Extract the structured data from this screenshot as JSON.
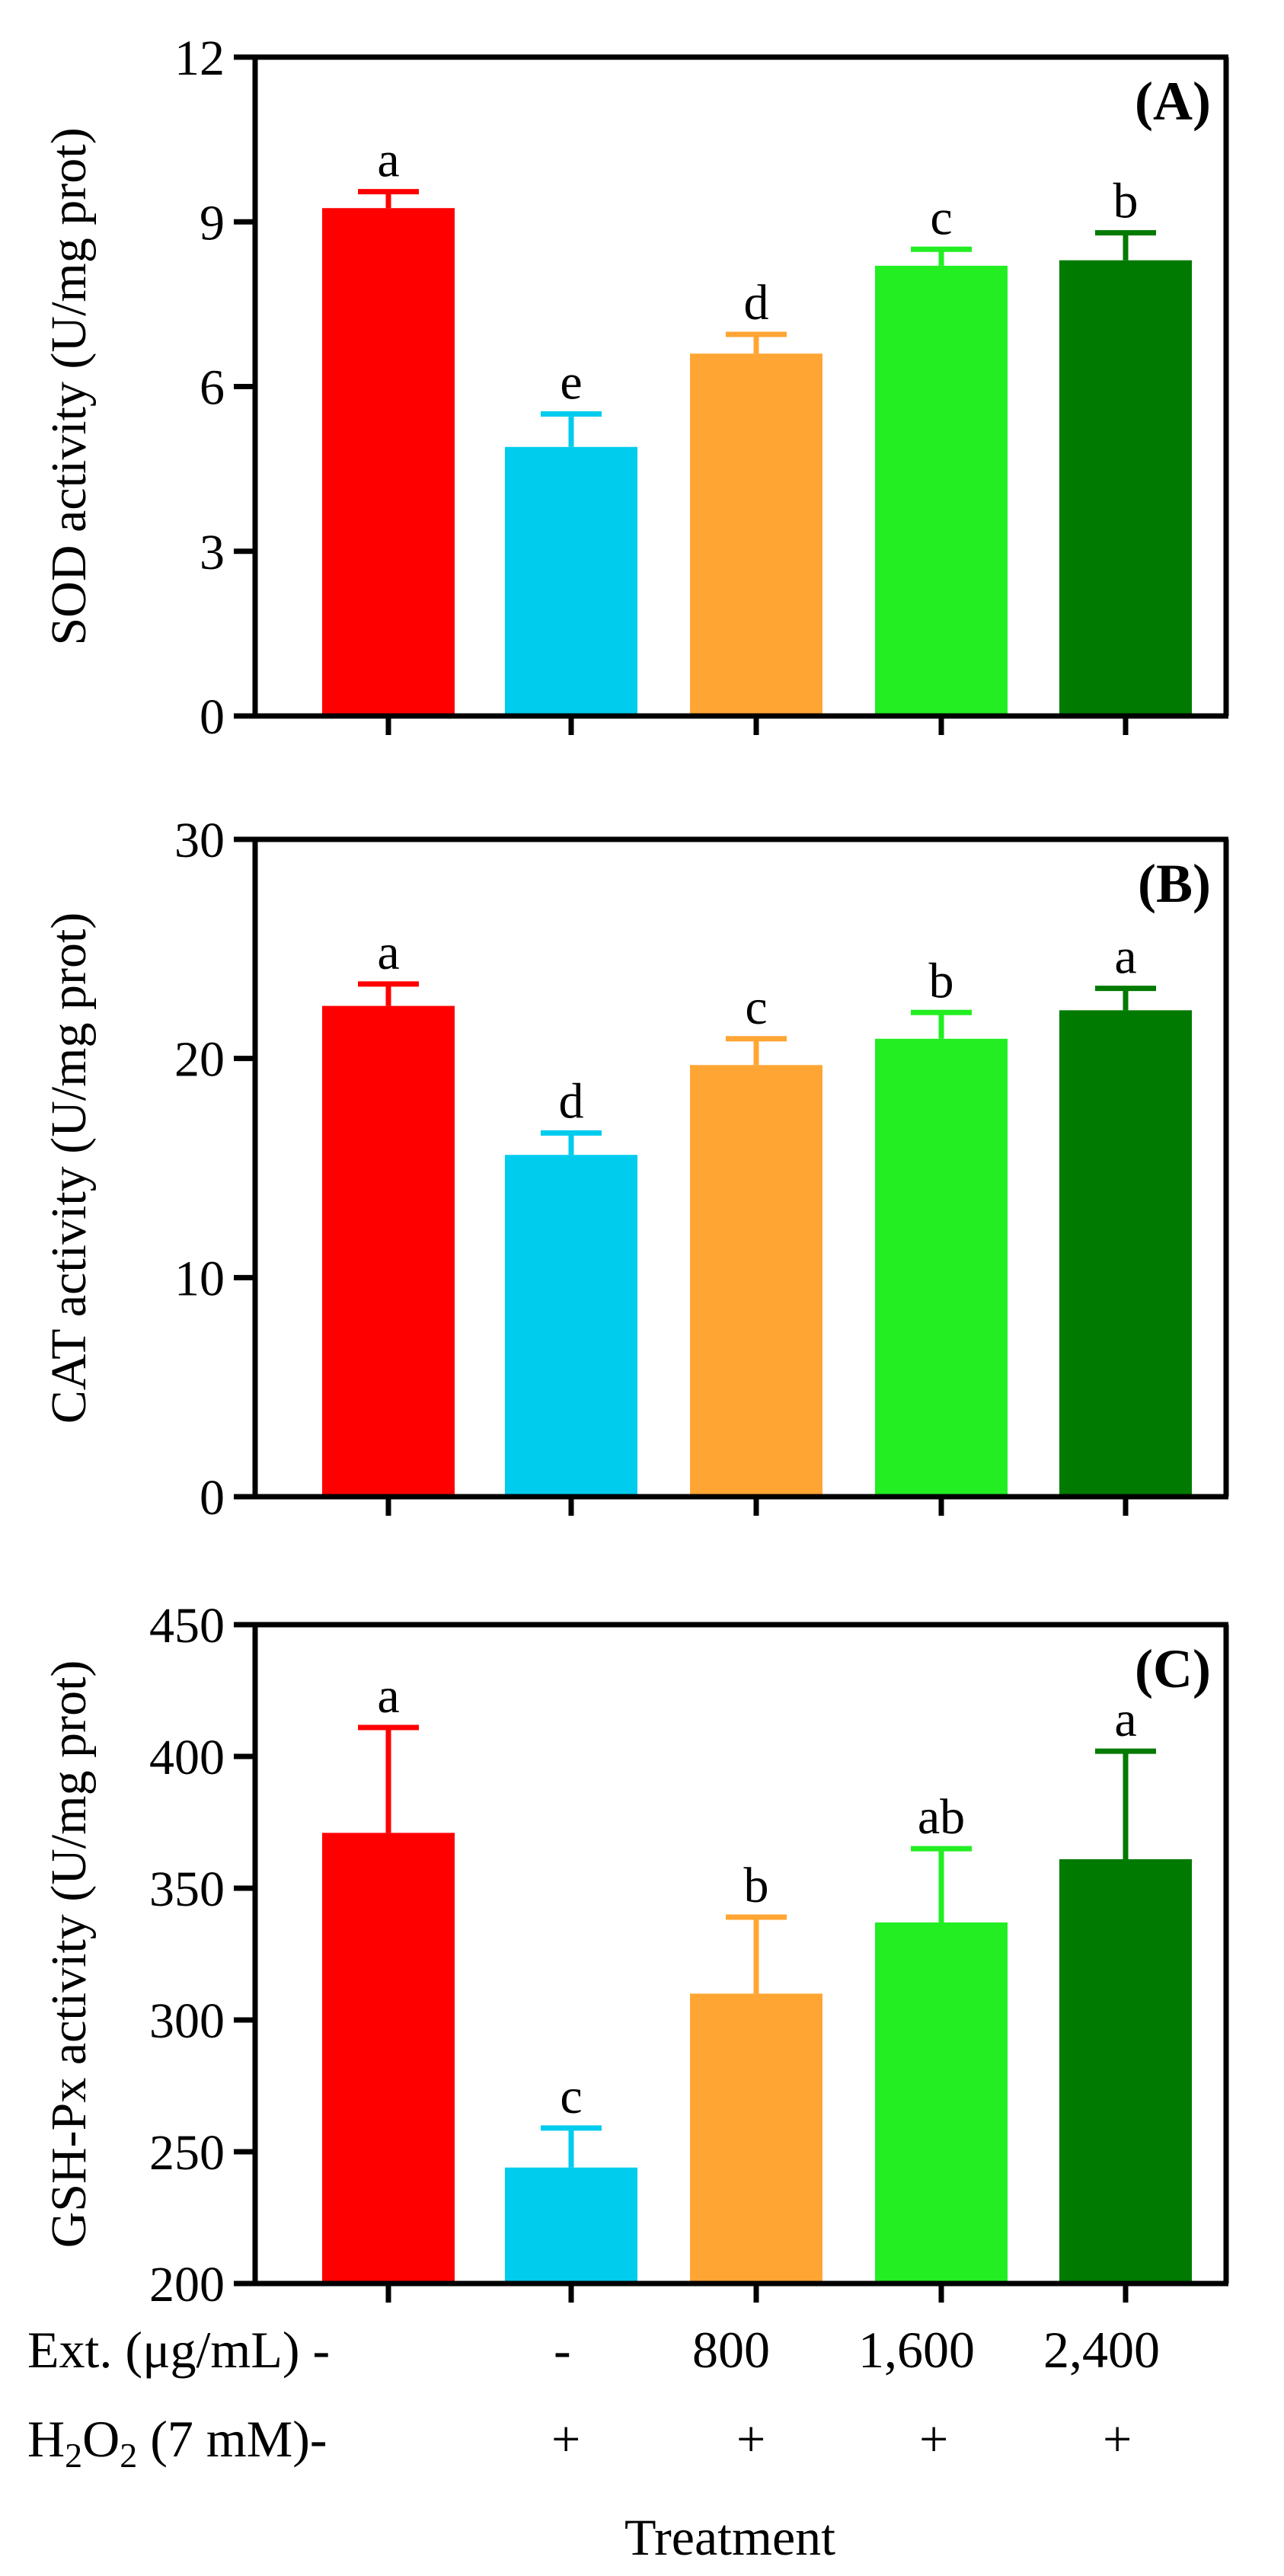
{
  "figure": {
    "treatment_label": "Treatment",
    "ext_row": {
      "label": "Ext. (μg/mL) -",
      "values": [
        "-",
        "800",
        "1,600",
        "2,400"
      ]
    },
    "h2o2_row": {
      "label_prefix": "H",
      "label_sub1": "2",
      "label_mid": "O",
      "label_sub2": "2",
      "label_suffix": " (7 mM)-",
      "values": [
        "+",
        "+",
        "+",
        "+"
      ]
    }
  },
  "chart_data": [
    {
      "type": "bar",
      "panel_label": "(A)",
      "ylabel": "SOD activity (U/mg prot)",
      "ylim": [
        0,
        12
      ],
      "yticks": [
        0,
        3,
        6,
        9,
        12
      ],
      "colors": [
        "#ff0000",
        "#00ccee",
        "#ffa533",
        "#22ee22",
        "#007a00"
      ],
      "values": [
        9.25,
        4.9,
        6.6,
        8.2,
        8.3
      ],
      "errors": [
        0.3,
        0.6,
        0.35,
        0.3,
        0.5
      ],
      "letters": [
        "a",
        "e",
        "d",
        "c",
        "b"
      ]
    },
    {
      "type": "bar",
      "panel_label": "(B)",
      "ylabel": "CAT activity (U/mg prot)",
      "ylim": [
        0,
        30
      ],
      "yticks": [
        0,
        10,
        20,
        30
      ],
      "colors": [
        "#ff0000",
        "#00ccee",
        "#ffa533",
        "#22ee22",
        "#007a00"
      ],
      "values": [
        22.4,
        15.6,
        19.7,
        20.9,
        22.2
      ],
      "errors": [
        1.0,
        1.0,
        1.2,
        1.2,
        1.0
      ],
      "letters": [
        "a",
        "d",
        "c",
        "b",
        "a"
      ]
    },
    {
      "type": "bar",
      "panel_label": "(C)",
      "ylabel": "GSH-Px activity (U/mg prot)",
      "ylim": [
        200,
        450
      ],
      "yticks": [
        200,
        250,
        300,
        350,
        400,
        450
      ],
      "colors": [
        "#ff0000",
        "#00ccee",
        "#ffa533",
        "#22ee22",
        "#007a00"
      ],
      "values": [
        371,
        244,
        310,
        337,
        361
      ],
      "errors": [
        40,
        15,
        29,
        28,
        41
      ],
      "letters": [
        "a",
        "c",
        "b",
        "ab",
        "a"
      ]
    }
  ]
}
